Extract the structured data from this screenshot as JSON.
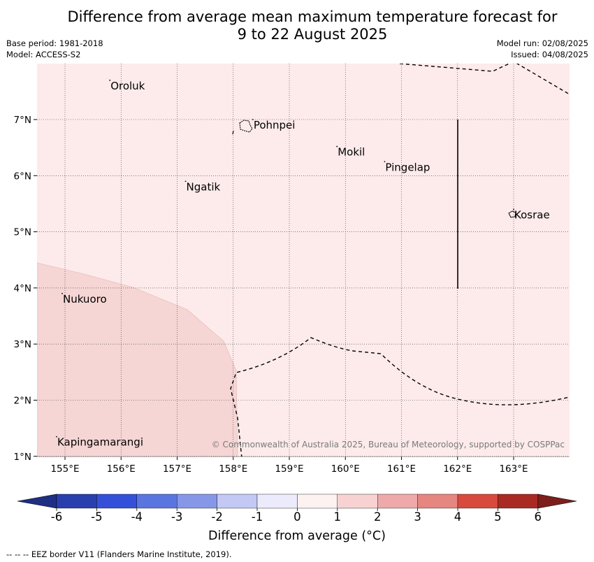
{
  "header": {
    "title_line1": "Difference from average mean maximum temperature forecast for",
    "title_line2": "9 to 22 August 2025",
    "base_period": "Base period: 1981-2018",
    "model": "Model: ACCESS-S2",
    "model_run": "Model run: 02/08/2025",
    "issued": "Issued: 04/08/2025"
  },
  "map": {
    "longitude_ticks": [
      "155°E",
      "156°E",
      "157°E",
      "158°E",
      "159°E",
      "160°E",
      "161°E",
      "162°E",
      "163°E"
    ],
    "latitude_ticks": [
      "7°N",
      "6°N",
      "5°N",
      "4°N",
      "3°N",
      "2°N",
      "1°N"
    ],
    "places": [
      {
        "name": "Oroluk",
        "lon": 155.8,
        "lat": 7.6
      },
      {
        "name": "Pohnpei",
        "lon": 158.35,
        "lat": 6.9
      },
      {
        "name": "Mokil",
        "lon": 159.85,
        "lat": 6.42
      },
      {
        "name": "Pingelap",
        "lon": 160.7,
        "lat": 6.15
      },
      {
        "name": "Ngatik",
        "lon": 157.15,
        "lat": 5.8
      },
      {
        "name": "Kosrae",
        "lon": 163.0,
        "lat": 5.3
      },
      {
        "name": "Nukuoro",
        "lon": 154.95,
        "lat": 3.8
      },
      {
        "name": "Kapingamarangi",
        "lon": 154.85,
        "lat": 1.25
      }
    ],
    "base_fill_color": "#fcebea",
    "anomaly_fill_color": "#f6d5d5",
    "copyright": "© Commonwealth of Australia 2025, Bureau of Meteorology, supported by COSPPac"
  },
  "colorbar": {
    "tick_labels": [
      "-6",
      "-5",
      "-4",
      "-3",
      "-2",
      "-1",
      "0",
      "1",
      "2",
      "3",
      "4",
      "5",
      "6"
    ],
    "colors": [
      "#2a3fae",
      "#3550d8",
      "#5b75e0",
      "#8797e8",
      "#c3c9f4",
      "#ebebfb",
      "#fef2f1",
      "#f8d2d2",
      "#eeaaaa",
      "#e58680",
      "#d84a3e",
      "#a92a23"
    ],
    "under_color": "#1f2f84",
    "over_color": "#7c1f1b",
    "label": "Difference from average (°C)"
  },
  "footer": {
    "eez_note": "--  --  -- EEZ border V11 (Flanders Marine Institute, 2019)."
  }
}
